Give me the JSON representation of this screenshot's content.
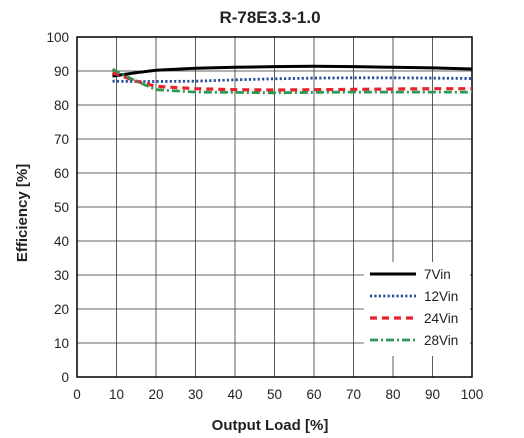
{
  "chart_data": {
    "type": "line",
    "title": "R-78E3.3-1.0",
    "xlabel": "Output Load [%]",
    "ylabel": "Efficiency [%]",
    "xlim": [
      0,
      100
    ],
    "ylim": [
      0,
      100
    ],
    "xticks": [
      0,
      10,
      20,
      30,
      40,
      50,
      60,
      70,
      80,
      90,
      100
    ],
    "yticks": [
      0,
      10,
      20,
      30,
      40,
      50,
      60,
      70,
      80,
      90,
      100
    ],
    "grid": true,
    "legend_position": "bottom-right",
    "series": [
      {
        "name": "7Vin",
        "color": "#000000",
        "style": "solid",
        "x": [
          9,
          15,
          20,
          30,
          40,
          50,
          60,
          70,
          80,
          90,
          100
        ],
        "y": [
          88.5,
          89.5,
          90.2,
          90.8,
          91.1,
          91.3,
          91.4,
          91.3,
          91.1,
          90.9,
          90.6
        ]
      },
      {
        "name": "12Vin",
        "color": "#2a4e9b",
        "style": "dotted",
        "x": [
          9,
          15,
          20,
          30,
          40,
          50,
          60,
          70,
          80,
          90,
          100
        ],
        "y": [
          87.0,
          86.9,
          86.9,
          87.0,
          87.4,
          87.7,
          87.9,
          88.0,
          88.0,
          87.9,
          87.8
        ]
      },
      {
        "name": "24Vin",
        "color": "#e8232a",
        "style": "dashed",
        "x": [
          9,
          15,
          20,
          30,
          40,
          50,
          60,
          70,
          80,
          90,
          100
        ],
        "y": [
          89.5,
          87.0,
          85.5,
          84.8,
          84.5,
          84.4,
          84.5,
          84.6,
          84.7,
          84.8,
          84.8
        ]
      },
      {
        "name": "28Vin",
        "color": "#2c9a57",
        "style": "dashdot",
        "x": [
          9,
          15,
          20,
          30,
          40,
          50,
          60,
          70,
          80,
          90,
          100
        ],
        "y": [
          90.5,
          87.0,
          84.5,
          83.8,
          83.7,
          83.6,
          83.7,
          83.8,
          83.8,
          83.8,
          83.8
        ]
      }
    ]
  }
}
